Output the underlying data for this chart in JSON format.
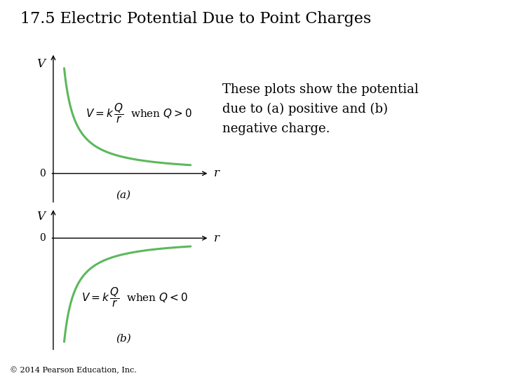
{
  "title": "17.5 Electric Potential Due to Point Charges",
  "title_fontsize": 16,
  "bg_color": "#ffffff",
  "curve_color": "#5cb85c",
  "curve_linewidth": 2.2,
  "text_color": "#000000",
  "description": "These plots show the potential\ndue to (a) positive and (b)\nnegative charge.",
  "desc_fontsize": 13,
  "formula_a": "$V = k\\,\\dfrac{Q}{r}$  when $Q > 0$",
  "formula_b": "$V = k\\,\\dfrac{Q}{r}$  when $Q < 0$",
  "formula_fontsize": 11,
  "label_a": "(a)",
  "label_b": "(b)",
  "axis_label_fontsize": 12,
  "copyright": "© 2014 Pearson Education, Inc.",
  "copyright_fontsize": 8
}
